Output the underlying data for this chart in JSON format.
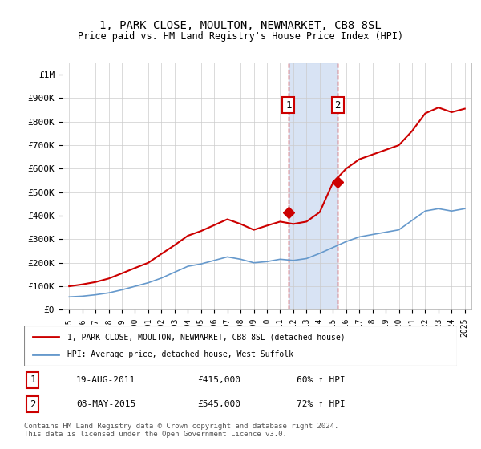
{
  "title": "1, PARK CLOSE, MOULTON, NEWMARKET, CB8 8SL",
  "subtitle": "Price paid vs. HM Land Registry's House Price Index (HPI)",
  "red_label": "1, PARK CLOSE, MOULTON, NEWMARKET, CB8 8SL (detached house)",
  "blue_label": "HPI: Average price, detached house, West Suffolk",
  "sale1_date": "19-AUG-2011",
  "sale1_price": 415000,
  "sale1_hpi": "60% ↑ HPI",
  "sale1_year": 2011.63,
  "sale2_date": "08-MAY-2015",
  "sale2_price": 545000,
  "sale2_hpi": "72% ↑ HPI",
  "sale2_year": 2015.36,
  "footer": "Contains HM Land Registry data © Crown copyright and database right 2024.\nThis data is licensed under the Open Government Licence v3.0.",
  "hpi_x": [
    1995,
    1996,
    1997,
    1998,
    1999,
    2000,
    2001,
    2002,
    2003,
    2004,
    2005,
    2006,
    2007,
    2008,
    2009,
    2010,
    2011,
    2012,
    2013,
    2014,
    2015,
    2016,
    2017,
    2018,
    2019,
    2020,
    2021,
    2022,
    2023,
    2024,
    2025
  ],
  "hpi_y": [
    55000,
    58000,
    64000,
    72000,
    85000,
    100000,
    115000,
    135000,
    160000,
    185000,
    195000,
    210000,
    225000,
    215000,
    200000,
    205000,
    215000,
    210000,
    218000,
    240000,
    265000,
    290000,
    310000,
    320000,
    330000,
    340000,
    380000,
    420000,
    430000,
    420000,
    430000
  ],
  "red_x": [
    1995,
    1996,
    1997,
    1998,
    1999,
    2000,
    2001,
    2002,
    2003,
    2004,
    2005,
    2006,
    2007,
    2008,
    2009,
    2010,
    2011,
    2012,
    2013,
    2014,
    2015,
    2016,
    2017,
    2018,
    2019,
    2020,
    2021,
    2022,
    2023,
    2024,
    2025
  ],
  "red_y": [
    100000,
    108000,
    118000,
    133000,
    155000,
    178000,
    200000,
    238000,
    275000,
    315000,
    335000,
    360000,
    385000,
    365000,
    340000,
    358000,
    375000,
    365000,
    375000,
    415000,
    540000,
    600000,
    640000,
    660000,
    680000,
    700000,
    760000,
    835000,
    860000,
    840000,
    855000
  ],
  "ylim": [
    0,
    1050000
  ],
  "yticks": [
    0,
    100000,
    200000,
    300000,
    400000,
    500000,
    600000,
    700000,
    800000,
    900000,
    1000000
  ],
  "ytick_labels": [
    "£0",
    "£100K",
    "£200K",
    "£300K",
    "£400K",
    "£500K",
    "£600K",
    "£700K",
    "£800K",
    "£900K",
    "£1M"
  ],
  "xlim": [
    1994.5,
    2025.5
  ],
  "xticks": [
    1995,
    1996,
    1997,
    1998,
    1999,
    2000,
    2001,
    2002,
    2003,
    2004,
    2005,
    2006,
    2007,
    2008,
    2009,
    2010,
    2011,
    2012,
    2013,
    2014,
    2015,
    2016,
    2017,
    2018,
    2019,
    2020,
    2021,
    2022,
    2023,
    2024,
    2025
  ],
  "shade_color": "#c8d8f0",
  "vline_color": "#cc0000",
  "red_line_color": "#cc0000",
  "blue_line_color": "#6699cc",
  "marker1_y": 415000,
  "marker2_y": 545000,
  "background_color": "#ffffff",
  "grid_color": "#cccccc"
}
